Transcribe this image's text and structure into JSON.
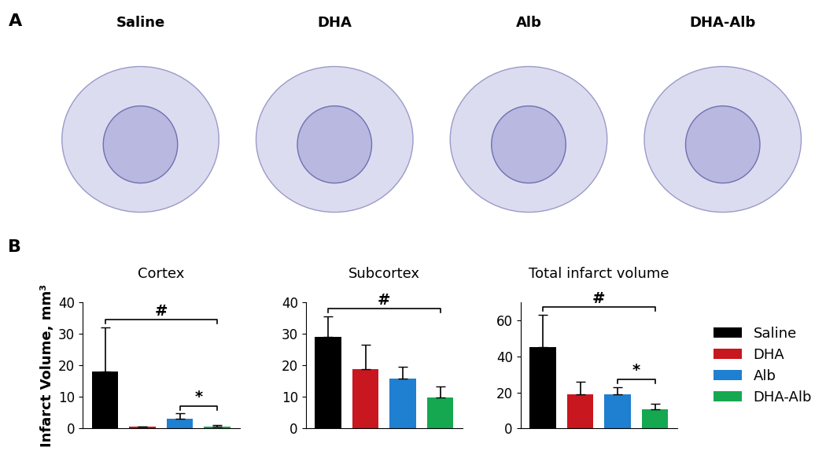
{
  "panel_a": {
    "label": "A",
    "images": [
      "Saline",
      "DHA",
      "Alb",
      "DHA-Alb"
    ]
  },
  "panel_b": {
    "label": "B"
  },
  "chart_data": [
    {
      "type": "bar",
      "title": "Cortex",
      "y_label": "Infarct Volume, mm³",
      "categories": [
        "Saline",
        "DHA",
        "Alb",
        "DHA-Alb"
      ],
      "values": [
        18,
        0.5,
        3.2,
        0.7
      ],
      "errors": [
        14,
        0.1,
        1.5,
        0.3
      ],
      "colors": [
        "#000000",
        "#c8171e",
        "#1f7fd0",
        "#16a850"
      ],
      "ylim": [
        0,
        40
      ],
      "yticks": [
        0,
        10,
        20,
        30,
        40
      ],
      "tick_labels": "y",
      "annotations": [
        {
          "text": "#",
          "from": "Saline",
          "to": "DHA-Alb"
        },
        {
          "text": "*",
          "from": "Alb",
          "to": "DHA-Alb"
        }
      ]
    },
    {
      "type": "bar",
      "title": "Subcortex",
      "categories": [
        "Saline",
        "DHA",
        "Alb",
        "DHA-Alb"
      ],
      "values": [
        29,
        18.7,
        15.8,
        9.7
      ],
      "errors": [
        6.5,
        7.7,
        3.7,
        3.5
      ],
      "colors": [
        "#000000",
        "#c8171e",
        "#1f7fd0",
        "#16a850"
      ],
      "ylim": [
        0,
        40
      ],
      "yticks": [
        0,
        10,
        20,
        30,
        40
      ],
      "tick_labels": "y",
      "annotations": [
        {
          "text": "#",
          "from": "Saline",
          "to": "DHA-Alb"
        }
      ]
    },
    {
      "type": "bar",
      "title": "Total infarct volume",
      "categories": [
        "Saline",
        "DHA",
        "Alb",
        "DHA-Alb"
      ],
      "values": [
        45,
        19,
        19,
        10.5
      ],
      "errors": [
        18,
        7,
        4,
        3
      ],
      "colors": [
        "#000000",
        "#c8171e",
        "#1f7fd0",
        "#16a850"
      ],
      "ylim": [
        0,
        70
      ],
      "yticks": [
        0,
        20,
        40,
        60
      ],
      "tick_labels": "y",
      "legend": "center left",
      "annotations": [
        {
          "text": "#",
          "from": "Saline",
          "to": "DHA-Alb"
        },
        {
          "text": "*",
          "from": "Alb",
          "to": "DHA-Alb"
        }
      ]
    }
  ]
}
